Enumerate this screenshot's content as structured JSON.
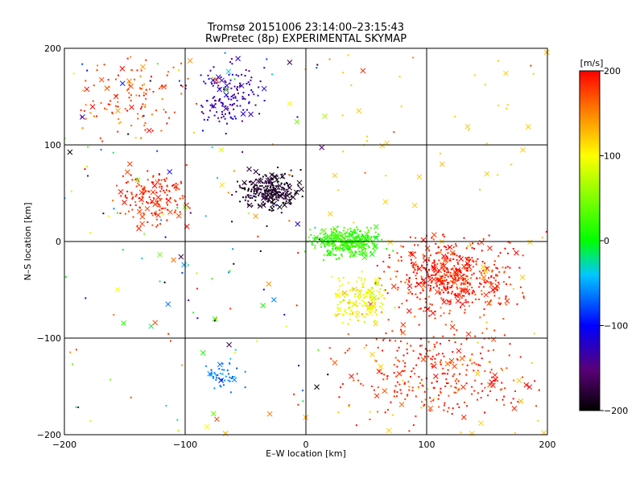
{
  "chart_data": {
    "type": "scatter",
    "title": "Tromsø 20151006 23:14:00–23:15:43",
    "subtitle": "RwPretec (8p) EXPERIMENTAL SKYMAP",
    "xlabel": "E–W location [km]",
    "ylabel": "N–S location [km]",
    "xlim": [
      -200,
      200
    ],
    "ylim": [
      -200,
      200
    ],
    "xticks": [
      -200,
      -100,
      0,
      100,
      200
    ],
    "yticks": [
      -200,
      -100,
      0,
      100,
      200
    ],
    "grid": true,
    "colorbar": {
      "label": "[m/s]",
      "min": -200,
      "max": 200,
      "ticks": [
        200,
        100,
        0,
        -100,
        -200
      ],
      "colormap": "rainbow (black-purple-blue-cyan-green-yellow-red)"
    },
    "markers": [
      "dot (small detections)",
      "x (large detections)"
    ],
    "series": [
      {
        "region": "red cluster east",
        "x_range": [
          60,
          180
        ],
        "y_range": [
          -80,
          10
        ],
        "velocity": 190
      },
      {
        "region": "red cluster southeast",
        "x_range": [
          20,
          200
        ],
        "y_range": [
          -200,
          -70
        ],
        "velocity": 185
      },
      {
        "region": "red cluster west",
        "x_range": [
          -160,
          -90
        ],
        "y_range": [
          10,
          80
        ],
        "velocity": 185
      },
      {
        "region": "red scatter north",
        "x_range": [
          -200,
          -90
        ],
        "y_range": [
          100,
          200
        ],
        "velocity": 175
      },
      {
        "region": "purple/black cluster",
        "x_range": [
          -60,
          0
        ],
        "y_range": [
          30,
          75
        ],
        "velocity": -185
      },
      {
        "region": "green/cyan cluster center",
        "x_range": [
          0,
          70
        ],
        "y_range": [
          -20,
          20
        ],
        "velocity": 20
      },
      {
        "region": "blue/purple cluster north",
        "x_range": [
          -100,
          -30
        ],
        "y_range": [
          110,
          190
        ],
        "velocity": -130
      },
      {
        "region": "cyan cluster southwest",
        "x_range": [
          -85,
          -50
        ],
        "y_range": [
          -155,
          -125
        ],
        "velocity": -60
      },
      {
        "region": "yellow/green cluster south-center",
        "x_range": [
          15,
          75
        ],
        "y_range": [
          -90,
          -30
        ],
        "velocity": 100
      }
    ]
  }
}
